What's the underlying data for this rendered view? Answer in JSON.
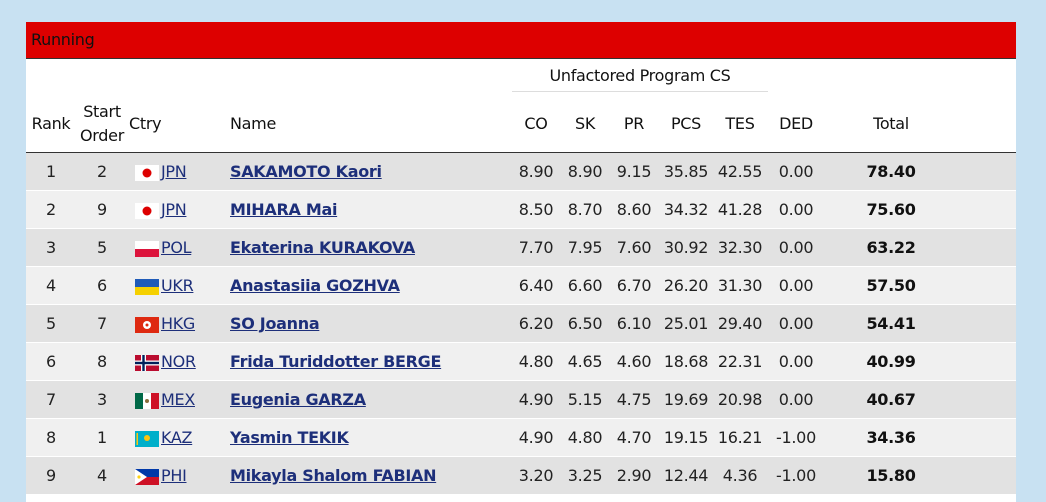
{
  "section": "Running",
  "header": {
    "group": "Unfactored Program CS",
    "columns": [
      "Rank",
      "Start Order",
      "Ctry",
      "Name",
      "CO",
      "SK",
      "PR",
      "PCS",
      "TES",
      "DED",
      "Total"
    ]
  },
  "rows": [
    [
      "1",
      "2",
      "JPN",
      "SAKAMOTO Kaori",
      "8.90",
      "8.90",
      "9.15",
      "35.85",
      "42.55",
      "0.00",
      "78.40"
    ],
    [
      "2",
      "9",
      "JPN",
      "MIHARA Mai",
      "8.50",
      "8.70",
      "8.60",
      "34.32",
      "41.28",
      "0.00",
      "75.60"
    ],
    [
      "3",
      "5",
      "POL",
      "Ekaterina KURAKOVA",
      "7.70",
      "7.95",
      "7.60",
      "30.92",
      "32.30",
      "0.00",
      "63.22"
    ],
    [
      "4",
      "6",
      "UKR",
      "Anastasiia GOZHVA",
      "6.40",
      "6.60",
      "6.70",
      "26.20",
      "31.30",
      "0.00",
      "57.50"
    ],
    [
      "5",
      "7",
      "HKG",
      "SO Joanna",
      "6.20",
      "6.50",
      "6.10",
      "25.01",
      "29.40",
      "0.00",
      "54.41"
    ],
    [
      "6",
      "8",
      "NOR",
      "Frida Turiddotter BERGE",
      "4.80",
      "4.65",
      "4.60",
      "18.68",
      "22.31",
      "0.00",
      "40.99"
    ],
    [
      "7",
      "3",
      "MEX",
      "Eugenia GARZA",
      "4.90",
      "5.15",
      "4.75",
      "19.69",
      "20.98",
      "0.00",
      "40.67"
    ],
    [
      "8",
      "1",
      "KAZ",
      "Yasmin TEKIK",
      "4.90",
      "4.80",
      "4.70",
      "19.15",
      "16.21",
      "-1.00",
      "34.36"
    ],
    [
      "9",
      "4",
      "PHI",
      "Mikayla Shalom FABIAN",
      "3.20",
      "3.25",
      "2.90",
      "12.44",
      "4.36",
      "-1.00",
      "15.80"
    ]
  ]
}
